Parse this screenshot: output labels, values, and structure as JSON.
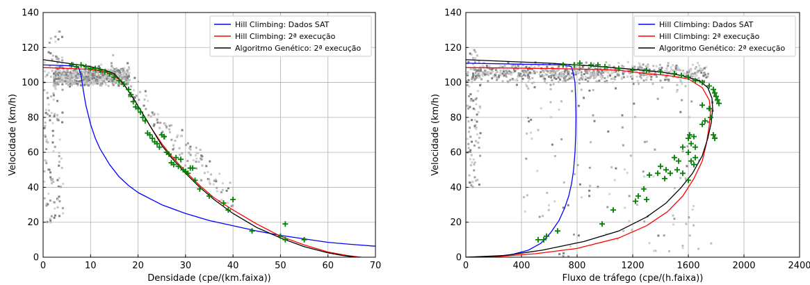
{
  "chart_data": [
    {
      "type": "line",
      "xlabel": "Densidade (cpe/(km.faixa))",
      "ylabel": "Velocidade (km/h)",
      "xlim": [
        0,
        70
      ],
      "ylim": [
        0,
        140
      ],
      "xticks": [
        "0",
        "10",
        "20",
        "30",
        "40",
        "50",
        "60",
        "70"
      ],
      "yticks": [
        "0",
        "20",
        "40",
        "60",
        "80",
        "100",
        "120",
        "140"
      ],
      "grid": true,
      "legend_position": "top-right",
      "series": [
        {
          "name": "Hill Climbing: Dados SAT",
          "color": "#0000ff",
          "points": [
            [
              0,
              110
            ],
            [
              6,
              109.5
            ],
            [
              7.5,
              108.5
            ],
            [
              8,
              104
            ],
            [
              8.5,
              95
            ],
            [
              9,
              87
            ],
            [
              10,
              76
            ],
            [
              11,
              68
            ],
            [
              12,
              62
            ],
            [
              14,
              53
            ],
            [
              16,
              46
            ],
            [
              18,
              41
            ],
            [
              20,
              37
            ],
            [
              25,
              30
            ],
            [
              30,
              25
            ],
            [
              35,
              21
            ],
            [
              40,
              18
            ],
            [
              45,
              15
            ],
            [
              50,
              12.5
            ],
            [
              55,
              10.5
            ],
            [
              60,
              8.5
            ],
            [
              65,
              7.3
            ],
            [
              70,
              6.3
            ]
          ]
        },
        {
          "name": "Hill Climbing: 2ª execução",
          "color": "#ff0000",
          "points": [
            [
              0,
              108.5
            ],
            [
              10,
              107.5
            ],
            [
              13,
              106
            ],
            [
              15,
              104
            ],
            [
              17,
              99
            ],
            [
              19,
              91
            ],
            [
              21,
              82
            ],
            [
              23,
              73
            ],
            [
              25,
              65
            ],
            [
              27,
              58
            ],
            [
              30,
              49
            ],
            [
              33,
              41
            ],
            [
              36,
              34
            ],
            [
              40,
              27
            ],
            [
              45,
              19
            ],
            [
              50,
              12
            ],
            [
              55,
              7
            ],
            [
              60,
              3
            ],
            [
              64,
              1
            ],
            [
              67,
              0
            ]
          ]
        },
        {
          "name": "Algoritmo Genético: 2ª execução",
          "color": "#000000",
          "points": [
            [
              0,
              113
            ],
            [
              5,
              111
            ],
            [
              10,
              109
            ],
            [
              13,
              107
            ],
            [
              15,
              105
            ],
            [
              17,
              99
            ],
            [
              19,
              91
            ],
            [
              21,
              82
            ],
            [
              23,
              73
            ],
            [
              25,
              64
            ],
            [
              27,
              57
            ],
            [
              30,
              48
            ],
            [
              33,
              40
            ],
            [
              36,
              33
            ],
            [
              40,
              25
            ],
            [
              45,
              17
            ],
            [
              50,
              11
            ],
            [
              55,
              6
            ],
            [
              60,
              2.5
            ],
            [
              63,
              1
            ],
            [
              66,
              0
            ]
          ]
        }
      ],
      "observations_color": "#008000",
      "observations": [
        [
          6,
          110
        ],
        [
          7,
          109
        ],
        [
          8,
          110
        ],
        [
          9,
          109
        ],
        [
          10,
          108
        ],
        [
          11,
          108
        ],
        [
          12,
          107
        ],
        [
          13,
          106
        ],
        [
          14,
          105
        ],
        [
          15,
          103
        ],
        [
          16,
          101
        ],
        [
          17,
          99
        ],
        [
          18,
          96
        ],
        [
          18.5,
          93
        ],
        [
          19,
          89
        ],
        [
          19.5,
          86
        ],
        [
          20,
          85
        ],
        [
          20.5,
          83
        ],
        [
          21,
          80
        ],
        [
          21.5,
          78
        ],
        [
          22,
          71
        ],
        [
          22.5,
          70
        ],
        [
          23,
          68
        ],
        [
          23.5,
          66
        ],
        [
          24,
          65
        ],
        [
          24.5,
          63
        ],
        [
          25,
          70
        ],
        [
          25.5,
          69
        ],
        [
          26,
          60
        ],
        [
          26.5,
          59
        ],
        [
          27,
          54
        ],
        [
          27.5,
          53
        ],
        [
          28,
          57
        ],
        [
          28.5,
          52
        ],
        [
          29,
          56
        ],
        [
          29.5,
          50
        ],
        [
          30,
          49
        ],
        [
          30.5,
          48
        ],
        [
          31,
          51
        ],
        [
          31.5,
          51
        ],
        [
          32,
          44
        ],
        [
          33,
          39
        ],
        [
          35,
          35
        ],
        [
          38,
          31
        ],
        [
          39,
          27
        ],
        [
          40,
          33
        ],
        [
          44,
          15
        ],
        [
          50,
          12
        ],
        [
          51,
          10
        ],
        [
          51,
          19
        ],
        [
          55,
          10
        ]
      ]
    },
    {
      "type": "line",
      "xlabel": "Fluxo de tráfego (cpe/(h.faixa))",
      "ylabel": "Velocidade (km/h)",
      "xlim": [
        0,
        2400
      ],
      "ylim": [
        0,
        140
      ],
      "xticks": [
        "0",
        "400",
        "800",
        "1200",
        "1600",
        "2000",
        "2400"
      ],
      "yticks": [
        "0",
        "20",
        "40",
        "60",
        "80",
        "100",
        "120",
        "140"
      ],
      "grid": true,
      "legend_position": "top-right",
      "series": [
        {
          "name": "Hill Climbing: Dados SAT",
          "color": "#0000ff",
          "points": [
            [
              0,
              111
            ],
            [
              700,
              110
            ],
            [
              760,
              109
            ],
            [
              770,
              106
            ],
            [
              785,
              100
            ],
            [
              790,
              90
            ],
            [
              792,
              80
            ],
            [
              790,
              70
            ],
            [
              785,
              60
            ],
            [
              775,
              50
            ],
            [
              760,
              42
            ],
            [
              740,
              35
            ],
            [
              710,
              28
            ],
            [
              670,
              21
            ],
            [
              610,
              14
            ],
            [
              540,
              8
            ],
            [
              450,
              4
            ],
            [
              330,
              1.5
            ],
            [
              200,
              0.3
            ],
            [
              80,
              0
            ]
          ]
        },
        {
          "name": "Hill Climbing: 2ª execução",
          "color": "#ff0000",
          "points": [
            [
              0,
              108.5
            ],
            [
              600,
              108
            ],
            [
              900,
              107.5
            ],
            [
              1100,
              107
            ],
            [
              1300,
              105
            ],
            [
              1450,
              104
            ],
            [
              1600,
              102
            ],
            [
              1700,
              97
            ],
            [
              1750,
              90
            ],
            [
              1760,
              84
            ],
            [
              1750,
              75
            ],
            [
              1730,
              65
            ],
            [
              1700,
              55
            ],
            [
              1640,
              45
            ],
            [
              1560,
              35
            ],
            [
              1450,
              26
            ],
            [
              1300,
              18
            ],
            [
              1100,
              11
            ],
            [
              800,
              5
            ],
            [
              500,
              2
            ],
            [
              250,
              0.5
            ],
            [
              0,
              0
            ]
          ]
        },
        {
          "name": "Algoritmo Genético: 2ª execução",
          "color": "#000000",
          "points": [
            [
              0,
              113
            ],
            [
              600,
              111
            ],
            [
              900,
              109.5
            ],
            [
              1200,
              107.5
            ],
            [
              1400,
              106
            ],
            [
              1550,
              104
            ],
            [
              1680,
              101
            ],
            [
              1740,
              97
            ],
            [
              1770,
              91
            ],
            [
              1775,
              85
            ],
            [
              1765,
              77
            ],
            [
              1740,
              68
            ],
            [
              1700,
              58
            ],
            [
              1630,
              48
            ],
            [
              1550,
              40
            ],
            [
              1440,
              31
            ],
            [
              1300,
              23
            ],
            [
              1100,
              15
            ],
            [
              850,
              9
            ],
            [
              550,
              4
            ],
            [
              280,
              1
            ],
            [
              0,
              0
            ]
          ]
        }
      ],
      "observations_color": "#008000",
      "observations": [
        [
          660,
          15
        ],
        [
          700,
          110
        ],
        [
          780,
          110
        ],
        [
          820,
          111
        ],
        [
          900,
          110
        ],
        [
          950,
          110
        ],
        [
          1000,
          109
        ],
        [
          1100,
          108
        ],
        [
          1200,
          107
        ],
        [
          1300,
          107
        ],
        [
          1400,
          106
        ],
        [
          1500,
          105
        ],
        [
          1550,
          104
        ],
        [
          1600,
          103
        ],
        [
          1650,
          101
        ],
        [
          1700,
          100
        ],
        [
          1750,
          98
        ],
        [
          1780,
          96
        ],
        [
          1790,
          94
        ],
        [
          1800,
          92
        ],
        [
          1810,
          90
        ],
        [
          1820,
          88
        ],
        [
          1700,
          87
        ],
        [
          1750,
          85
        ],
        [
          1760,
          80
        ],
        [
          1720,
          78
        ],
        [
          1700,
          76
        ],
        [
          1610,
          70
        ],
        [
          1640,
          69
        ],
        [
          1780,
          70
        ],
        [
          1790,
          68
        ],
        [
          1600,
          68
        ],
        [
          1620,
          65
        ],
        [
          1650,
          63
        ],
        [
          1560,
          63
        ],
        [
          1600,
          60
        ],
        [
          1620,
          55
        ],
        [
          1650,
          57
        ],
        [
          1500,
          57
        ],
        [
          1530,
          55
        ],
        [
          1640,
          53
        ],
        [
          1400,
          52
        ],
        [
          1440,
          50
        ],
        [
          1470,
          48
        ],
        [
          1520,
          50
        ],
        [
          1560,
          48
        ],
        [
          1380,
          48
        ],
        [
          1320,
          47
        ],
        [
          1430,
          45
        ],
        [
          1600,
          44
        ],
        [
          1280,
          39
        ],
        [
          1240,
          35
        ],
        [
          1220,
          32
        ],
        [
          1300,
          33
        ],
        [
          1060,
          27
        ],
        [
          980,
          19
        ],
        [
          580,
          12
        ],
        [
          560,
          10
        ],
        [
          520,
          10
        ]
      ]
    }
  ]
}
